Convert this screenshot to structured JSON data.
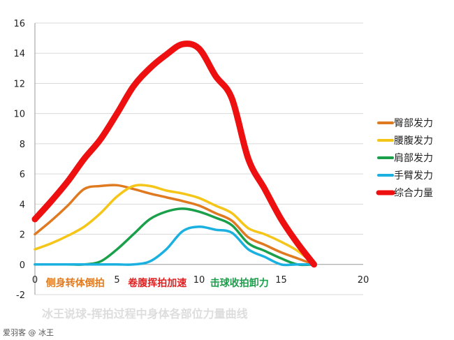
{
  "chart_data": {
    "type": "line",
    "title": "冰王说球-挥拍过程中身体各部位力量曲线",
    "xlim": [
      0,
      20
    ],
    "ylim": [
      -2,
      16
    ],
    "xticks": [
      0,
      5,
      10,
      15,
      20
    ],
    "yticks": [
      -2,
      0,
      2,
      4,
      6,
      8,
      10,
      12,
      14,
      16
    ],
    "grid": "horizontal",
    "legend_position": "right",
    "x": [
      0,
      1,
      2,
      3,
      4,
      5,
      6,
      7,
      8,
      9,
      10,
      11,
      12,
      13,
      14,
      15,
      16,
      17
    ],
    "series": [
      {
        "name": "臀部发力",
        "color": "#e07a20",
        "values": [
          2,
          2.9,
          3.9,
          5,
          5.2,
          5.25,
          5,
          4.7,
          4.45,
          4.2,
          3.9,
          3.4,
          2.9,
          1.8,
          1.3,
          0.8,
          0.4,
          0
        ]
      },
      {
        "name": "腰腹发力",
        "color": "#f5c518",
        "values": [
          1,
          1.4,
          1.9,
          2.5,
          3.4,
          4.5,
          5.2,
          5.2,
          4.9,
          4.7,
          4.4,
          3.9,
          3.4,
          2.4,
          2,
          1.5,
          0.9,
          0
        ]
      },
      {
        "name": "肩部发力",
        "color": "#1aa04a",
        "values": [
          0,
          0,
          0,
          0,
          0.2,
          1,
          2,
          3,
          3.5,
          3.7,
          3.5,
          3.1,
          2.6,
          1.4,
          0.9,
          0.4,
          0,
          0
        ]
      },
      {
        "name": "手臂发力",
        "color": "#1ab0e0",
        "values": [
          0,
          0,
          0,
          0,
          0,
          0,
          0,
          0.2,
          1,
          2.2,
          2.5,
          2.3,
          2.1,
          1,
          0.5,
          0,
          0,
          0
        ]
      },
      {
        "name": "综合力量",
        "color": "#ee1010",
        "values": [
          3,
          4.2,
          5.5,
          7,
          8.3,
          10,
          11.8,
          13,
          13.9,
          14.6,
          14.3,
          12.5,
          11,
          7,
          5,
          3,
          1.4,
          0
        ]
      }
    ],
    "annotations": [
      {
        "text": "侧身转体倒拍",
        "color": "#e07a20",
        "x": 3.5
      },
      {
        "text": "卷腹挥拍加速",
        "color": "#e02020",
        "x": 8.5
      },
      {
        "text": "击球收拍卸力",
        "color": "#1aa04a",
        "x": 13.5
      }
    ]
  },
  "credit": "爱羽客 @ 冰王"
}
